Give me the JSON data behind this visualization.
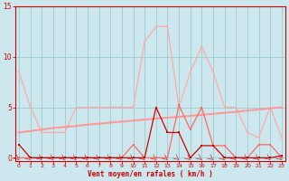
{
  "x": [
    0,
    1,
    2,
    3,
    4,
    5,
    6,
    7,
    8,
    9,
    10,
    11,
    12,
    13,
    14,
    15,
    16,
    17,
    18,
    19,
    20,
    21,
    22,
    23
  ],
  "series_dark_red": [
    1.3,
    0.0,
    0.0,
    0.0,
    0.0,
    0.0,
    0.0,
    0.0,
    0.0,
    0.0,
    0.0,
    0.0,
    5.0,
    2.5,
    2.5,
    0.0,
    1.2,
    1.2,
    0.0,
    0.0,
    0.0,
    0.0,
    0.0,
    0.2
  ],
  "series_light_pink": [
    8.5,
    5.0,
    2.5,
    2.5,
    2.5,
    5.0,
    5.0,
    5.0,
    5.0,
    5.0,
    5.0,
    11.5,
    13.0,
    13.0,
    5.0,
    8.5,
    11.0,
    8.5,
    5.0,
    5.0,
    2.5,
    2.0,
    5.0,
    2.0
  ],
  "series_med_red": [
    0.0,
    0.0,
    0.0,
    0.0,
    0.0,
    0.0,
    0.0,
    0.0,
    0.0,
    0.0,
    1.3,
    0.0,
    0.0,
    0.0,
    5.2,
    2.8,
    5.0,
    1.2,
    1.2,
    0.0,
    0.0,
    1.3,
    1.3,
    0.0
  ],
  "series_trend": [
    2.5,
    2.65,
    2.8,
    2.95,
    3.05,
    3.15,
    3.28,
    3.38,
    3.48,
    3.58,
    3.68,
    3.78,
    3.88,
    3.98,
    4.05,
    4.15,
    4.25,
    4.35,
    4.45,
    4.55,
    4.68,
    4.78,
    4.9,
    5.0
  ],
  "color_dark_red": "#cc0000",
  "color_light_pink": "#ffaaaa",
  "color_med_red": "#ff6666",
  "color_trend": "#ff9999",
  "bg_color": "#cce8ee",
  "grid_color": "#99cccc",
  "tick_color": "#cc0000",
  "xlabel": "Vent moyen/en rafales ( km/h )",
  "xlim": [
    0,
    23
  ],
  "ylim": [
    0,
    15
  ],
  "yticks": [
    0,
    5,
    10,
    15
  ],
  "xticks": [
    0,
    1,
    2,
    3,
    4,
    5,
    6,
    7,
    8,
    9,
    10,
    11,
    12,
    13,
    14,
    15,
    16,
    17,
    18,
    19,
    20,
    21,
    22,
    23
  ]
}
